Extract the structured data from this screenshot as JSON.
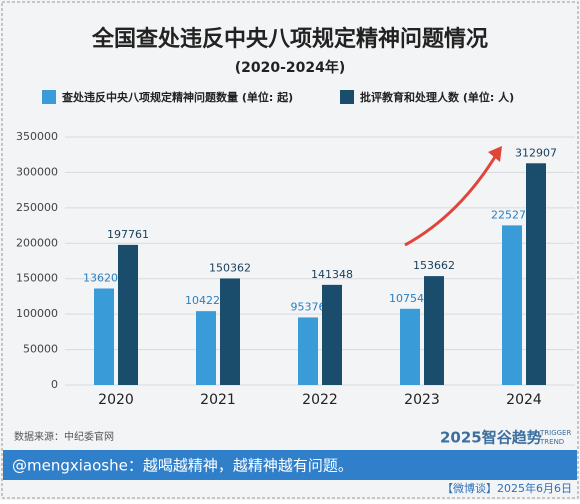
{
  "chart_data": {
    "type": "bar",
    "title": "全国查处违反中央八项规定精神问题情况",
    "subtitle": "(2020-2024年)",
    "categories": [
      "2020",
      "2021",
      "2022",
      "2023",
      "2024"
    ],
    "series": [
      {
        "name": "查处违反中央八项规定精神问题数量 (单位: 起)",
        "color": "#3a9bd9",
        "values": [
          136203,
          104223,
          95376,
          107547,
          225275
        ]
      },
      {
        "name": "批评教育和处理人数 (单位: 人)",
        "color": "#1a4d6b",
        "values": [
          197761,
          150362,
          141348,
          153662,
          312907
        ]
      }
    ],
    "ylim": [
      0,
      350000
    ],
    "yticks": [
      0,
      50000,
      100000,
      150000,
      200000,
      250000,
      300000,
      350000
    ],
    "grid": true,
    "source": "数据来源：中纪委官网",
    "brand": {
      "name": "2025智谷趋势",
      "tagline": [
        "TRIGGER",
        "TREND"
      ]
    }
  },
  "footer": {
    "comment": "@mengxiaoshe：越喝越精神，越精神越有问题。",
    "date": "【微博谈】2025年6月6日"
  }
}
